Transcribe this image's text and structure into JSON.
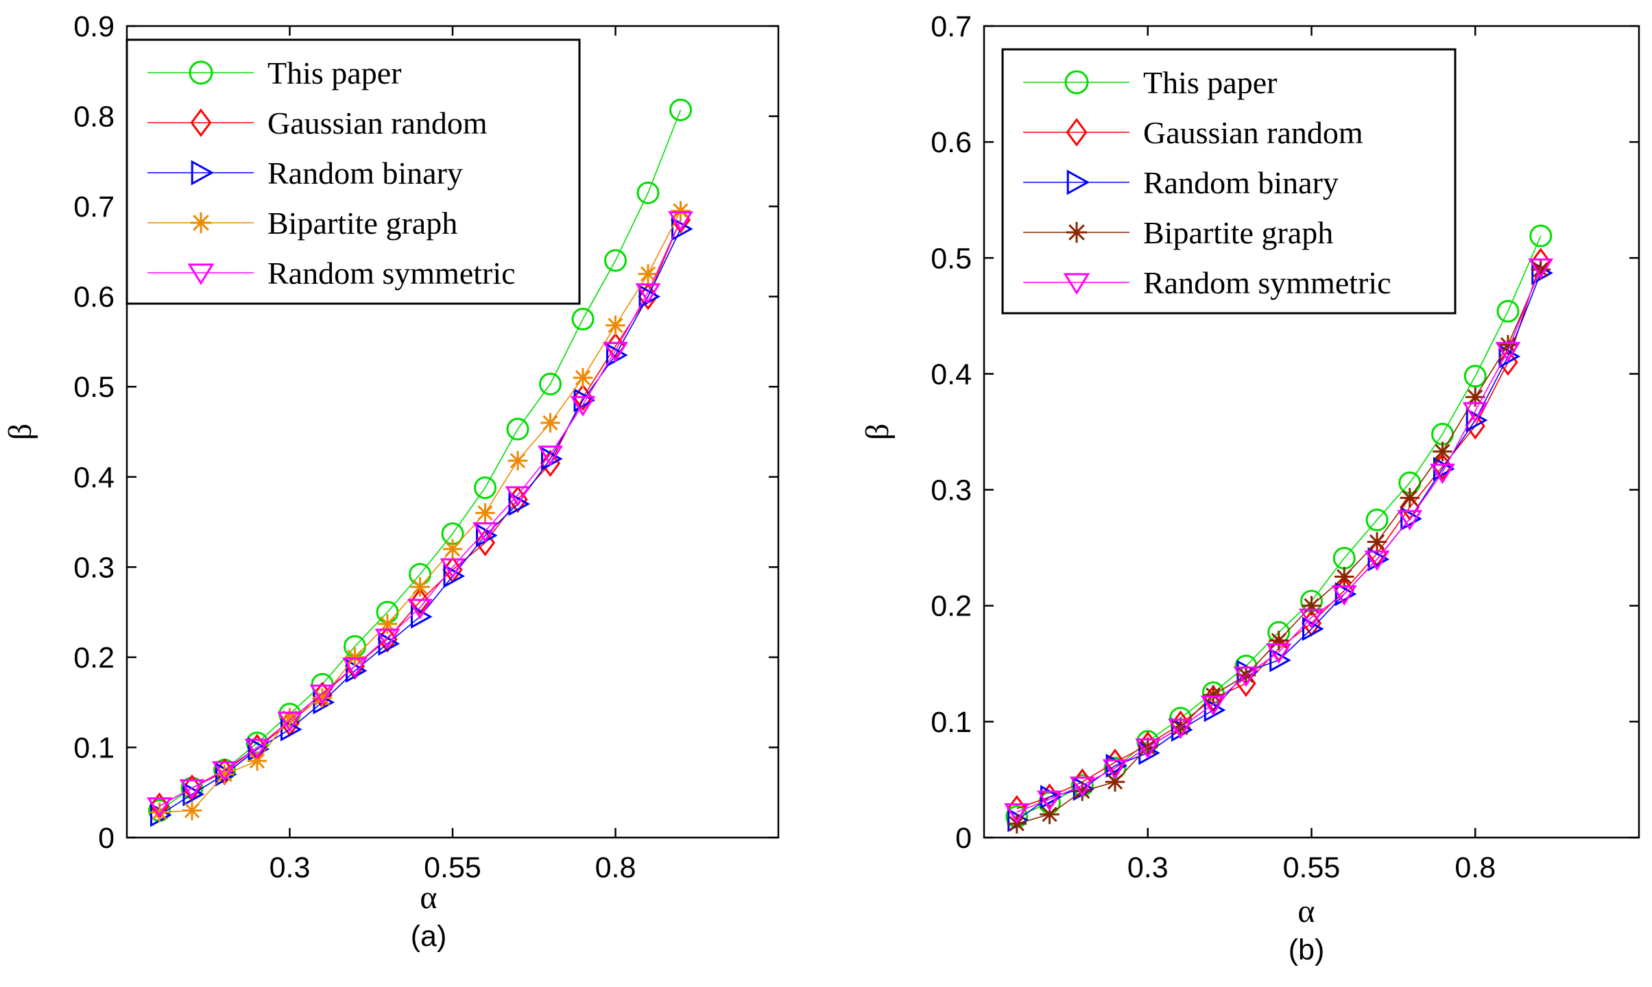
{
  "chart_data": [
    {
      "type": "line",
      "title": "",
      "caption": "(a)",
      "xlabel": "α",
      "ylabel": "β",
      "xlim": [
        0.05,
        1.05
      ],
      "ylim": [
        0,
        0.9
      ],
      "xticks": [
        0.3,
        0.55,
        0.8
      ],
      "xtick_labels": [
        "0.3",
        "0.55",
        "0.8"
      ],
      "yticks": [
        0,
        0.1,
        0.2,
        0.3,
        0.4,
        0.5,
        0.6,
        0.7,
        0.8,
        0.9
      ],
      "ytick_labels": [
        "0",
        "0.1",
        "0.2",
        "0.3",
        "0.4",
        "0.5",
        "0.6",
        "0.7",
        "0.8",
        "0.9"
      ],
      "legend_position": "top-left",
      "x": [
        0.1,
        0.15,
        0.2,
        0.25,
        0.3,
        0.35,
        0.4,
        0.45,
        0.5,
        0.55,
        0.6,
        0.65,
        0.7,
        0.75,
        0.8,
        0.85,
        0.9
      ],
      "series": [
        {
          "name": "This paper",
          "color": "#00dd00",
          "marker": "circle",
          "values": [
            0.03,
            0.055,
            0.075,
            0.105,
            0.137,
            0.17,
            0.212,
            0.25,
            0.292,
            0.337,
            0.388,
            0.453,
            0.503,
            0.575,
            0.64,
            0.715,
            0.807
          ]
        },
        {
          "name": "Gaussian random",
          "color": "#ff0000",
          "marker": "diamond",
          "values": [
            0.035,
            0.055,
            0.073,
            0.1,
            0.127,
            0.158,
            0.19,
            0.22,
            0.262,
            0.297,
            0.327,
            0.375,
            0.415,
            0.488,
            0.545,
            0.6,
            0.685
          ]
        },
        {
          "name": "Random binary",
          "color": "#0000ff",
          "marker": "triangle-right",
          "values": [
            0.025,
            0.048,
            0.07,
            0.098,
            0.12,
            0.15,
            0.185,
            0.215,
            0.245,
            0.29,
            0.335,
            0.37,
            0.42,
            0.485,
            0.535,
            0.6,
            0.675
          ]
        },
        {
          "name": "Bipartite graph",
          "color": "#ee8800",
          "marker": "star",
          "values": [
            0.028,
            0.03,
            0.07,
            0.085,
            0.133,
            0.155,
            0.2,
            0.237,
            0.278,
            0.32,
            0.36,
            0.418,
            0.46,
            0.51,
            0.568,
            0.625,
            0.695
          ]
        },
        {
          "name": "Random symmetric",
          "color": "#ff00ff",
          "marker": "triangle-down",
          "values": [
            0.035,
            0.055,
            0.075,
            0.1,
            0.13,
            0.16,
            0.19,
            0.222,
            0.255,
            0.3,
            0.34,
            0.38,
            0.425,
            0.48,
            0.54,
            0.605,
            0.685
          ]
        }
      ]
    },
    {
      "type": "line",
      "title": "",
      "caption": "(b)",
      "xlabel": "α",
      "ylabel": "β",
      "xlim": [
        0.05,
        1.05
      ],
      "ylim": [
        0,
        0.7
      ],
      "xticks": [
        0.3,
        0.55,
        0.8
      ],
      "xtick_labels": [
        "0.3",
        "0.55",
        "0.8"
      ],
      "yticks": [
        0,
        0.1,
        0.2,
        0.3,
        0.4,
        0.5,
        0.6,
        0.7
      ],
      "ytick_labels": [
        "0",
        "0.1",
        "0.2",
        "0.3",
        "0.4",
        "0.5",
        "0.6",
        "0.7"
      ],
      "legend_position": "top-left",
      "x": [
        0.1,
        0.15,
        0.2,
        0.25,
        0.3,
        0.35,
        0.4,
        0.45,
        0.5,
        0.55,
        0.6,
        0.65,
        0.7,
        0.75,
        0.8,
        0.85,
        0.9
      ],
      "series": [
        {
          "name": "This paper",
          "color": "#00dd00",
          "marker": "circle",
          "values": [
            0.018,
            0.03,
            0.045,
            0.06,
            0.083,
            0.103,
            0.125,
            0.148,
            0.177,
            0.204,
            0.241,
            0.274,
            0.306,
            0.348,
            0.398,
            0.454,
            0.519
          ]
        },
        {
          "name": "Gaussian random",
          "color": "#ff0000",
          "marker": "diamond",
          "values": [
            0.025,
            0.035,
            0.048,
            0.065,
            0.08,
            0.098,
            0.12,
            0.133,
            0.163,
            0.185,
            0.213,
            0.245,
            0.285,
            0.32,
            0.355,
            0.41,
            0.497
          ]
        },
        {
          "name": "Random binary",
          "color": "#0000ff",
          "marker": "triangle-right",
          "values": [
            0.015,
            0.035,
            0.042,
            0.062,
            0.073,
            0.093,
            0.11,
            0.143,
            0.153,
            0.18,
            0.21,
            0.24,
            0.275,
            0.318,
            0.36,
            0.415,
            0.487
          ]
        },
        {
          "name": "Bipartite graph",
          "color": "#8b2500",
          "marker": "star",
          "values": [
            0.012,
            0.02,
            0.04,
            0.048,
            0.078,
            0.095,
            0.123,
            0.14,
            0.17,
            0.2,
            0.225,
            0.255,
            0.293,
            0.333,
            0.38,
            0.425,
            0.49
          ]
        },
        {
          "name": "Random symmetric",
          "color": "#ff00ff",
          "marker": "triangle-down",
          "values": [
            0.022,
            0.033,
            0.045,
            0.06,
            0.078,
            0.095,
            0.115,
            0.14,
            0.16,
            0.19,
            0.21,
            0.24,
            0.275,
            0.315,
            0.368,
            0.42,
            0.492
          ]
        }
      ]
    }
  ]
}
